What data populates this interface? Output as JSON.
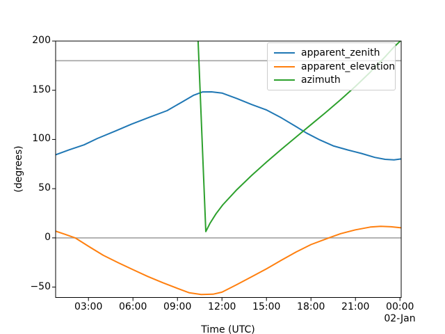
{
  "chart_data": {
    "type": "line",
    "title": "",
    "xlabel": "Time (UTC)",
    "ylabel": "(degrees)",
    "x_date_label": "02-Jan",
    "xlim": [
      0.787,
      24.083
    ],
    "ylim": [
      -60.55,
      200
    ],
    "grid": false,
    "legend_position": "upper right",
    "axis_color": "#000000",
    "reference_lines": {
      "values": [
        0,
        180
      ],
      "color": "#a9a9a9"
    },
    "xticks": [
      {
        "hour": 3,
        "label": "03:00"
      },
      {
        "hour": 6,
        "label": "06:00"
      },
      {
        "hour": 9,
        "label": "09:00"
      },
      {
        "hour": 12,
        "label": "12:00"
      },
      {
        "hour": 15,
        "label": "15:00"
      },
      {
        "hour": 18,
        "label": "18:00"
      },
      {
        "hour": 21,
        "label": "21:00"
      },
      {
        "hour": 24,
        "label": "00:00"
      }
    ],
    "yticks": [
      {
        "value": -50,
        "label": "−50"
      },
      {
        "value": 0,
        "label": "0"
      },
      {
        "value": 50,
        "label": "50"
      },
      {
        "value": 100,
        "label": "100"
      },
      {
        "value": 150,
        "label": "150"
      },
      {
        "value": 200,
        "label": "200"
      }
    ],
    "series": [
      {
        "name": "apparent_zenith",
        "color": "#1f77b4",
        "x": [
          0.79,
          1.7,
          2.7,
          3.6,
          4.8,
          5.9,
          7.1,
          8.3,
          9.3,
          10.1,
          10.7,
          11.3,
          12.0,
          13.0,
          14.0,
          15.0,
          16.0,
          17.0,
          17.7,
          18.6,
          19.5,
          20.5,
          21.4,
          22.3,
          23.0,
          23.6,
          24.08
        ],
        "values": [
          84.5,
          89.5,
          94.5,
          101,
          108.5,
          115.6,
          122.5,
          129.3,
          138,
          145,
          148.3,
          148.4,
          147.2,
          141.6,
          135.5,
          130,
          122,
          113,
          106.5,
          99.5,
          93.5,
          89.3,
          85.8,
          81.8,
          79.8,
          79.2,
          80.2
        ]
      },
      {
        "name": "apparent_elevation",
        "color": "#ff7f0e",
        "x": [
          0.79,
          1.45,
          2.11,
          3.0,
          4.0,
          5.0,
          6.0,
          7.0,
          8.0,
          9.0,
          9.8,
          10.6,
          11.4,
          12.0,
          13.0,
          14.0,
          15.0,
          16.0,
          17.0,
          18.0,
          19.2,
          20.0,
          21.0,
          22.0,
          22.7,
          23.4,
          24.08
        ],
        "values": [
          6.8,
          3.5,
          0,
          -8.5,
          -17.7,
          -25.2,
          -32.3,
          -39.2,
          -45.5,
          -51.3,
          -55.8,
          -57.6,
          -57.2,
          -55.2,
          -47.5,
          -39.5,
          -31.5,
          -22.7,
          -14.3,
          -6.8,
          0,
          4.3,
          8.2,
          11.0,
          11.8,
          11.3,
          10.2
        ]
      },
      {
        "name": "azimuth",
        "color": "#2ca02c",
        "x": [
          10.0,
          10.91,
          11.2,
          11.6,
          12.05,
          13.0,
          14.0,
          15.0,
          16.0,
          17.0,
          18.0,
          19.0,
          20.0,
          21.0,
          22.0,
          23.0,
          23.6,
          24.08
        ],
        "values": [
          345,
          6.4,
          15,
          24.5,
          33.5,
          49,
          63.5,
          77,
          90,
          102.5,
          115,
          127.5,
          140.5,
          154,
          168.5,
          184,
          194,
          200.8
        ]
      }
    ]
  }
}
